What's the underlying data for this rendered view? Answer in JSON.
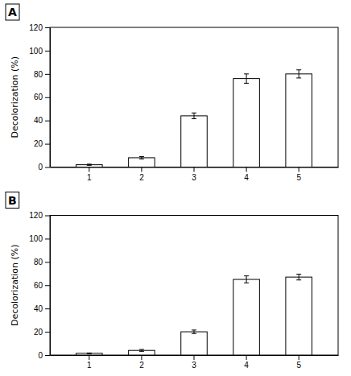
{
  "chart_data": [
    {
      "type": "bar",
      "title": "A",
      "categories": [
        "1",
        "2",
        "3",
        "4",
        "5"
      ],
      "values": [
        2,
        8,
        44,
        76,
        80
      ],
      "errors": [
        0.5,
        1.0,
        2.5,
        4.0,
        3.5
      ],
      "ylabel": "Decolorization (%)",
      "ylim": [
        0,
        120
      ],
      "yticks": [
        0,
        20,
        40,
        60,
        80,
        100,
        120
      ],
      "color": "white",
      "grid": false
    },
    {
      "type": "bar",
      "title": "B",
      "categories": [
        "1",
        "2",
        "3",
        "4",
        "5"
      ],
      "values": [
        1.5,
        4,
        20,
        65,
        67
      ],
      "errors": [
        0.3,
        0.8,
        1.5,
        3.0,
        2.5
      ],
      "ylabel": "Decolorization (%)",
      "ylim": [
        0,
        120
      ],
      "yticks": [
        0,
        20,
        40,
        60,
        80,
        100,
        120
      ],
      "color": "white",
      "grid": false
    }
  ]
}
